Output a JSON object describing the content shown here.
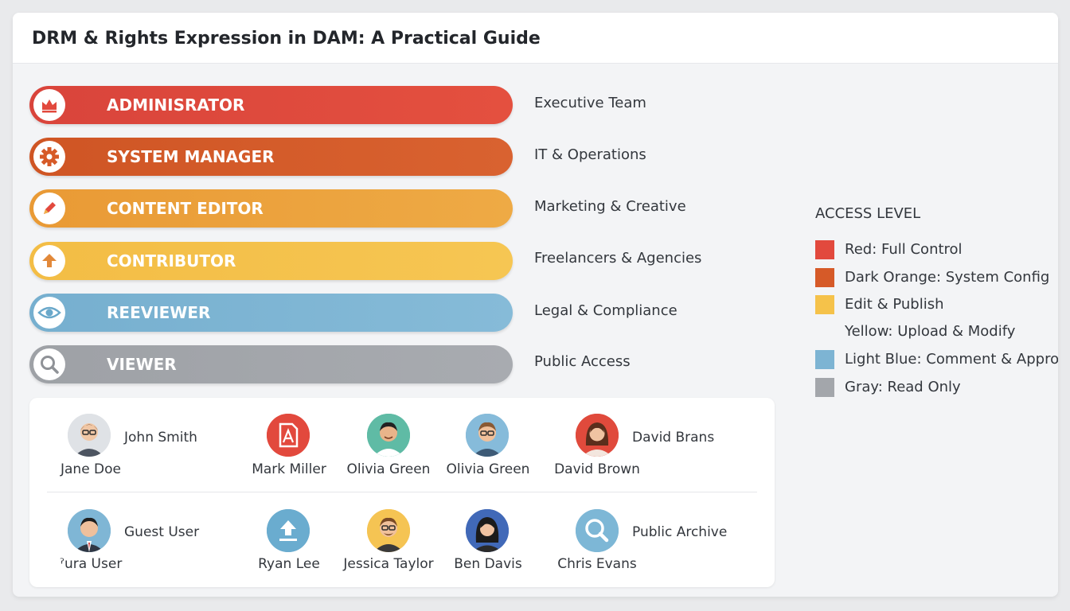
{
  "title": "DRM & Rights Expression in DAM: A Practical Guide",
  "roles": [
    {
      "label": "ADMINISRATOR",
      "group": "Executive Team",
      "color": "#e2493d",
      "icon": "crown-icon"
    },
    {
      "label": "SYSTEM MANAGER",
      "group": "IT & Operations",
      "color": "#d65a28",
      "icon": "gear-icon"
    },
    {
      "label": "CONTENT EDITOR",
      "group": "Marketing & Creative",
      "color": "#eba23c",
      "icon": "pencil-icon"
    },
    {
      "label": "CONTRIBUTOR",
      "group": "Freelancers & Agencies",
      "color": "#f5c24a",
      "icon": "upload-icon"
    },
    {
      "label": "REEVIEWER",
      "group": "Legal & Compliance",
      "color": "#7db4d3",
      "icon": "eye-icon"
    },
    {
      "label": "VIEWER",
      "group": "Public Access",
      "color": "#a3a6ab",
      "icon": "search-icon"
    }
  ],
  "legend": {
    "title": "ACCESS LEVEL",
    "items": [
      {
        "label": "Red: Full Control",
        "color": "#e2493d"
      },
      {
        "label": "Dark Orange: System Config",
        "color": "#d65a28"
      },
      {
        "label": "Edit & Publish",
        "color": "#f5c24a"
      },
      {
        "label": "Yellow: Upload & Modify",
        "color": ""
      },
      {
        "label": "Light Blue: Comment & Approve",
        "color": "#7db4d3"
      },
      {
        "label": "Gray: Read Only",
        "color": "#a3a6ab"
      }
    ]
  },
  "users": {
    "row1": [
      {
        "name": "Jane Doe",
        "side": "John Smith",
        "avatar": "person-glasses-icon"
      },
      {
        "name": "Mark Miller",
        "avatar": "document-icon"
      },
      {
        "name": "Olivia Green",
        "avatar": "person-icon"
      },
      {
        "name": "Olivia Green",
        "avatar": "person-glasses-icon"
      },
      {
        "name": "David Brown",
        "side": "David Brans",
        "avatar": "woman-icon"
      }
    ],
    "row2": [
      {
        "name": "ˀura User",
        "side": "Guest User",
        "avatar": "person-suit-icon"
      },
      {
        "name": "Ryan Lee",
        "avatar": "upload-icon"
      },
      {
        "name": "Jessica Taylor",
        "avatar": "person-glasses-icon"
      },
      {
        "name": "Ben Davis",
        "avatar": "woman-icon"
      },
      {
        "name": "Chris Evans",
        "side": "Public Archive",
        "avatar": "search-icon"
      }
    ]
  }
}
